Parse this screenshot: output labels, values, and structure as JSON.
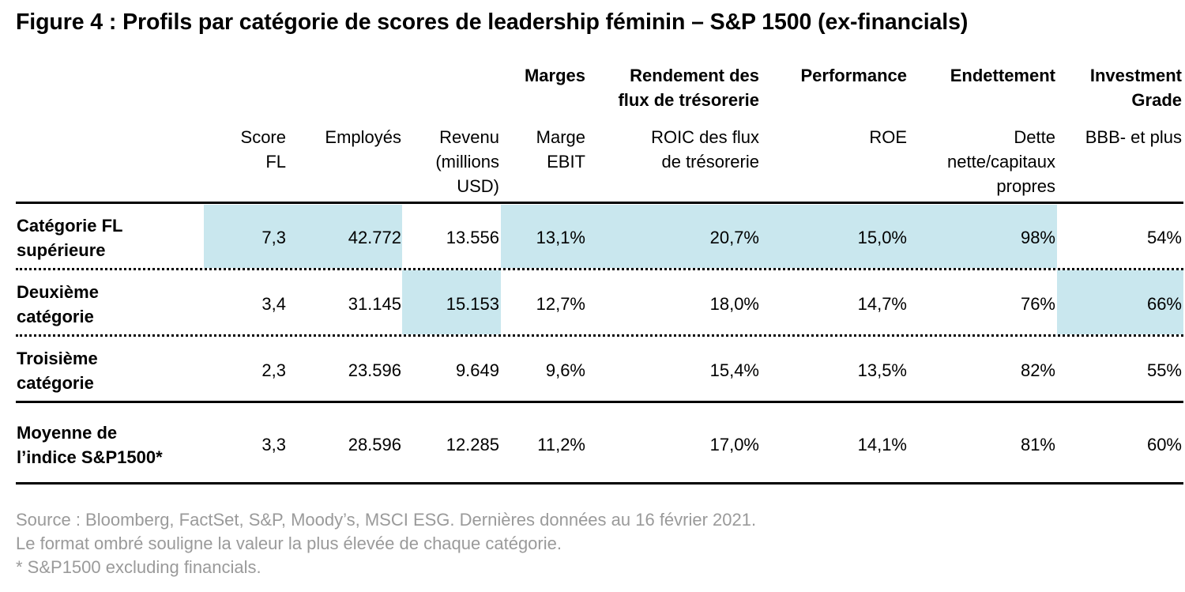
{
  "title": "Figure 4 : Profils par catégorie de scores de leadership féminin – S&P 1500 (ex-financials)",
  "groups": [
    {
      "key": "marges",
      "label": "Marges"
    },
    {
      "key": "rendement",
      "label": "Rendement des\nflux de trésorerie"
    },
    {
      "key": "performance",
      "label": "Performance"
    },
    {
      "key": "endettement",
      "label": "Endettement"
    },
    {
      "key": "ig",
      "label": "Investment\nGrade"
    }
  ],
  "columns": [
    {
      "key": "score",
      "label": "Score\nFL"
    },
    {
      "key": "employes",
      "label": "Employés"
    },
    {
      "key": "revenu",
      "label": "Revenu\n(millions\nUSD)"
    },
    {
      "key": "marge",
      "label": "Marge\nEBIT"
    },
    {
      "key": "roic",
      "label": "ROIC des flux\nde trésorerie"
    },
    {
      "key": "roe",
      "label": "ROE"
    },
    {
      "key": "dette",
      "label": "Dette\nnette/capitaux\npropres"
    },
    {
      "key": "bbb",
      "label": "BBB- et plus"
    }
  ],
  "rows": [
    {
      "label": "Catégorie FL\nsupérieure",
      "values": [
        "7,3",
        "42.772",
        "13.556",
        "13,1%",
        "20,7%",
        "15,0%",
        "98%",
        "54%"
      ],
      "highlighted": [
        true,
        true,
        false,
        true,
        true,
        true,
        true,
        false
      ]
    },
    {
      "label": "Deuxième\ncatégorie",
      "values": [
        "3,4",
        "31.145",
        "15.153",
        "12,7%",
        "18,0%",
        "14,7%",
        "76%",
        "66%"
      ],
      "highlighted": [
        false,
        false,
        true,
        false,
        false,
        false,
        false,
        true
      ]
    },
    {
      "label": "Troisième\ncatégorie",
      "values": [
        "2,3",
        "23.596",
        "9.649",
        "9,6%",
        "15,4%",
        "13,5%",
        "82%",
        "55%"
      ],
      "highlighted": [
        false,
        false,
        false,
        false,
        false,
        false,
        false,
        false
      ]
    },
    {
      "label": "Moyenne de\nl’indice S&P1500*",
      "values": [
        "3,3",
        "28.596",
        "12.285",
        "11,2%",
        "17,0%",
        "14,1%",
        "81%",
        "60%"
      ],
      "highlighted": [
        false,
        false,
        false,
        false,
        false,
        false,
        false,
        false
      ]
    }
  ],
  "notes": [
    "Source : Bloomberg, FactSet, S&P, Moody’s, MSCI ESG. Dernières données au 16 février 2021.",
    "Le format ombré souligne la valeur la plus élevée de chaque catégorie.",
    "* S&P1500 excluding financials."
  ],
  "colors": {
    "highlight": "#c9e7ee",
    "note_text": "#9a9a9a"
  }
}
